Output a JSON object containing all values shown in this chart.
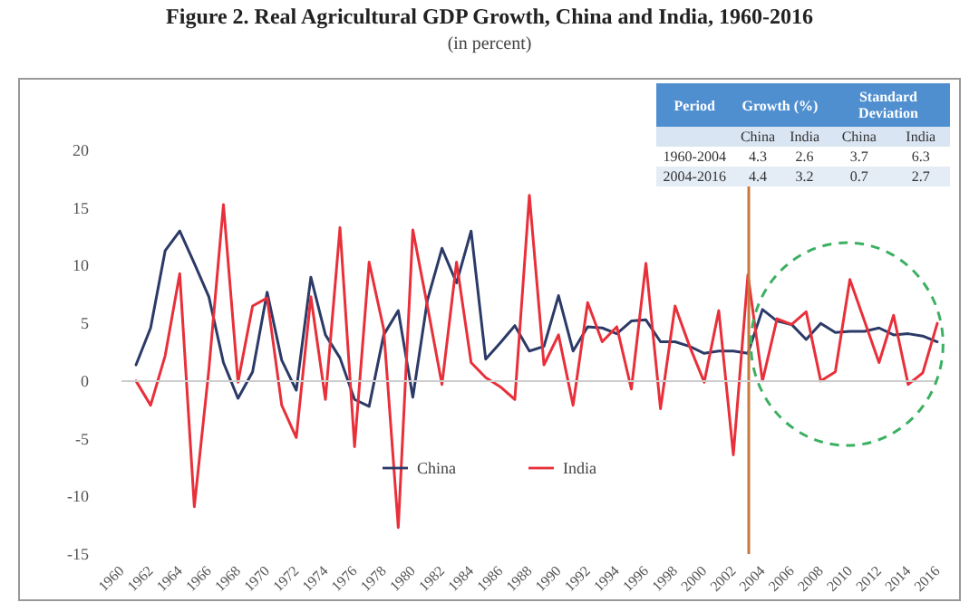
{
  "chart_data": {
    "type": "line",
    "title": "Figure 2. Real Agricultural GDP Growth, China and India, 1960-2016",
    "subtitle": "(in percent)",
    "x": [
      1961,
      1962,
      1963,
      1964,
      1965,
      1966,
      1967,
      1968,
      1969,
      1970,
      1971,
      1972,
      1973,
      1974,
      1975,
      1976,
      1977,
      1978,
      1979,
      1980,
      1981,
      1982,
      1983,
      1984,
      1985,
      1986,
      1987,
      1988,
      1989,
      1990,
      1991,
      1992,
      1993,
      1994,
      1995,
      1996,
      1997,
      1998,
      1999,
      2000,
      2001,
      2002,
      2003,
      2004,
      2005,
      2006,
      2007,
      2008,
      2009,
      2010,
      2011,
      2012,
      2013,
      2014,
      2015,
      2016
    ],
    "series": [
      {
        "name": "China",
        "color": "#2b3a67",
        "values": [
          1.4,
          4.6,
          11.3,
          13.0,
          10.2,
          7.3,
          1.6,
          -1.5,
          0.8,
          7.7,
          1.8,
          -0.8,
          9.0,
          4.0,
          2.0,
          -1.6,
          -2.2,
          4.0,
          6.1,
          -1.4,
          7.0,
          11.5,
          8.5,
          13.0,
          1.9,
          3.3,
          4.8,
          2.6,
          3.0,
          7.4,
          2.6,
          4.7,
          4.6,
          4.1,
          5.2,
          5.3,
          3.4,
          3.4,
          3.0,
          2.4,
          2.6,
          2.6,
          2.4,
          6.2,
          5.2,
          4.9,
          3.6,
          5.0,
          4.2,
          4.3,
          4.3,
          4.6,
          4.0,
          4.1,
          3.9,
          3.4
        ]
      },
      {
        "name": "India",
        "color": "#e8303a",
        "values": [
          0.0,
          -2.1,
          2.2,
          9.3,
          -10.9,
          1.0,
          15.3,
          -0.1,
          6.5,
          7.2,
          -2.1,
          -4.9,
          7.3,
          -1.6,
          13.3,
          -5.7,
          10.3,
          4.5,
          -12.7,
          13.1,
          6.5,
          -0.3,
          10.3,
          1.6,
          0.3,
          -0.5,
          -1.6,
          16.1,
          1.4,
          4.0,
          -2.1,
          6.8,
          3.4,
          4.7,
          -0.7,
          10.2,
          -2.4,
          6.5,
          3.0,
          -0.1,
          6.1,
          -6.4,
          9.2,
          0.0,
          5.4,
          4.9,
          6.0,
          0.0,
          0.8,
          8.8,
          5.2,
          1.6,
          5.7,
          -0.3,
          0.7,
          5.0
        ]
      }
    ],
    "xlim": [
      1960,
      2016
    ],
    "xticks": [
      1960,
      1962,
      1964,
      1966,
      1968,
      1970,
      1972,
      1974,
      1976,
      1978,
      1980,
      1982,
      1984,
      1986,
      1988,
      1990,
      1992,
      1994,
      1996,
      1998,
      2000,
      2002,
      2004,
      2006,
      2008,
      2010,
      2012,
      2014,
      2016
    ],
    "ylim": [
      -15,
      20
    ],
    "yticks": [
      -15,
      -10,
      -5,
      0,
      5,
      10,
      15,
      20
    ],
    "ref_lines": [
      {
        "axis": "x",
        "value": 2003,
        "color": "#c8783c"
      },
      {
        "axis": "y",
        "value": 0,
        "color": "#cccccc"
      }
    ],
    "annotations": [
      "Period",
      "Growth (%)",
      "Standard Deviation",
      "China",
      "India",
      "China",
      "India",
      "1960-2004",
      "4.3",
      "2.6",
      "3.7",
      "6.3",
      "2004-2016",
      "4.4",
      "3.2",
      "0.7",
      "2.7"
    ],
    "legend": "bottom",
    "marker": "none",
    "line_style": "solid",
    "grid": false
  }
}
